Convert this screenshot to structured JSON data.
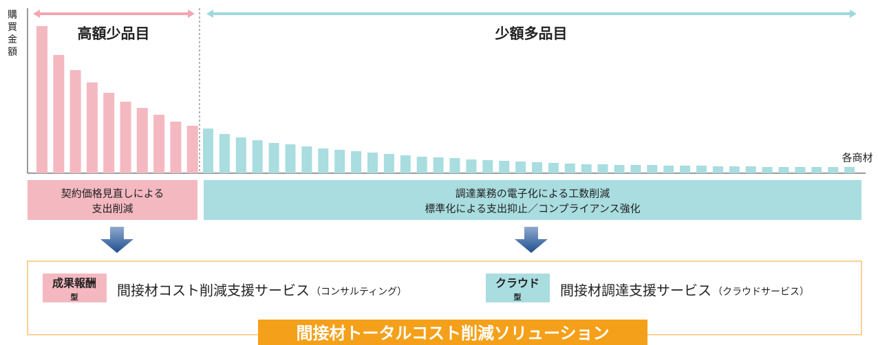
{
  "chart": {
    "y_label": "購買金額",
    "x_label": "各商材",
    "ylim": [
      0,
      240
    ],
    "groups": [
      {
        "label": "高額少品目",
        "color": "#f4b8c1",
        "arrow_color": "#f4a6b3",
        "values": [
          214,
          172,
          150,
          132,
          117,
          104,
          95,
          85,
          75,
          69
        ],
        "box": [
          "契約価格見直しによる",
          "支出削減"
        ]
      },
      {
        "label": "少額多品目",
        "color": "#a9dde0",
        "arrow_color": "#9fd8dc",
        "values": [
          65,
          57,
          52,
          48,
          44,
          42,
          39,
          36,
          34,
          32,
          30,
          28,
          26,
          24,
          23,
          22,
          20,
          19,
          18,
          17,
          16,
          15,
          14,
          13,
          13,
          12,
          12,
          12,
          11,
          11,
          11,
          10,
          10,
          10,
          9,
          9,
          9,
          9,
          9,
          9
        ],
        "box": [
          "調達業務の電子化による工数削減",
          "標準化による支出抑止／コンプライアンス強化"
        ]
      }
    ]
  },
  "services": [
    {
      "tag": "成果報酬",
      "tag_sub": "型",
      "tag_color": "#f4b8c1",
      "name": "間接材コスト削減支援サービス",
      "note": "（コンサルティング）"
    },
    {
      "tag": "クラウド",
      "tag_sub": "型",
      "tag_color": "#a9dde0",
      "name": "間接材調達支援サービス",
      "note": "（クラウドサービス）"
    }
  ],
  "solution": "間接材トータルコスト削減ソリューション"
}
